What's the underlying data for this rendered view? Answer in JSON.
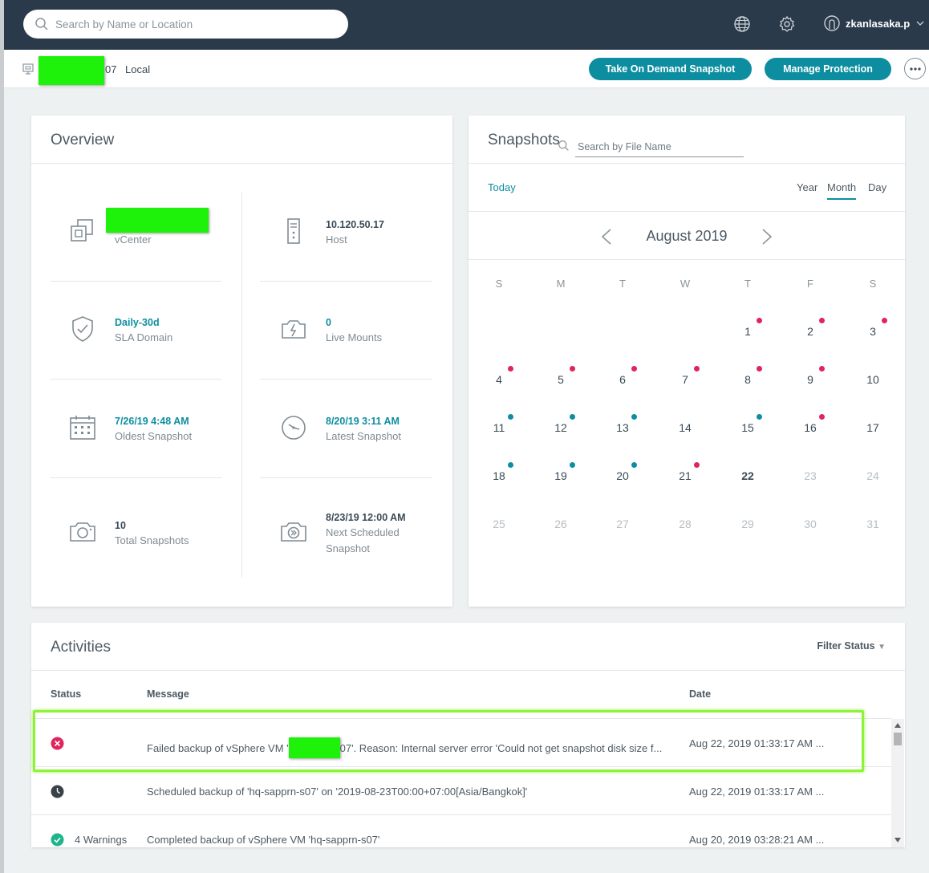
{
  "topbar": {
    "search_placeholder": "Search by Name or Location",
    "username": "zkanlasaka.p"
  },
  "subheader": {
    "vm_name_suffix": "07",
    "location": "Local",
    "take_snapshot_label": "Take On Demand Snapshot",
    "manage_protection_label": "Manage Protection"
  },
  "overview": {
    "title": "Overview",
    "vcenter_label": "vCenter",
    "host_value": "10.120.50.17",
    "host_label": "Host",
    "sla_value": "Daily-30d",
    "sla_label": "SLA Domain",
    "live_mounts_value": "0",
    "live_mounts_label": "Live Mounts",
    "oldest_value": "7/26/19 4:48 AM",
    "oldest_label": "Oldest Snapshot",
    "latest_value": "8/20/19 3:11 AM",
    "latest_label": "Latest Snapshot",
    "total_value": "10",
    "total_label": "Total Snapshots",
    "next_value": "8/23/19 12:00 AM",
    "next_label_1": "Next Scheduled",
    "next_label_2": "Snapshot"
  },
  "snapshots": {
    "title": "Snapshots",
    "search_placeholder": "Search by File Name",
    "today_label": "Today",
    "views": [
      "Year",
      "Month",
      "Day"
    ],
    "active_view": "Month",
    "month_label": "August 2019",
    "weekdays": [
      "S",
      "M",
      "T",
      "W",
      "T",
      "F",
      "S"
    ],
    "weeks": [
      [
        null,
        null,
        null,
        null,
        1,
        2,
        3
      ],
      [
        4,
        5,
        6,
        7,
        8,
        9,
        10
      ],
      [
        11,
        12,
        13,
        14,
        15,
        16,
        17
      ],
      [
        18,
        19,
        20,
        21,
        22,
        23,
        24
      ],
      [
        25,
        26,
        27,
        28,
        29,
        30,
        31
      ]
    ],
    "today_day": 22,
    "red_dot_days": [
      1,
      2,
      3,
      4,
      5,
      6,
      7,
      8,
      9,
      16,
      21
    ],
    "teal_dot_days": [
      11,
      12,
      13,
      15,
      18,
      19,
      20
    ],
    "colors": {
      "red": "#e0245e",
      "teal": "#0d8ea0"
    }
  },
  "activities": {
    "title": "Activities",
    "filter_label": "Filter Status",
    "columns": {
      "status": "Status",
      "message": "Message",
      "date": "Date"
    },
    "rows": [
      {
        "status": "error",
        "warnings": "",
        "message_prefix": "Failed backup of vSphere VM '",
        "message_suffix": "07'. Reason: Internal server error 'Could not get snapshot disk size f...",
        "date": "Aug 22, 2019 01:33:17 AM ..."
      },
      {
        "status": "scheduled",
        "warnings": "",
        "message": "Scheduled backup of 'hq-sapprn-s07' on '2019-08-23T00:00+07:00[Asia/Bangkok]'",
        "date": "Aug 22, 2019 01:33:17 AM ..."
      },
      {
        "status": "success",
        "warnings": "4 Warnings",
        "message": "Completed backup of vSphere VM 'hq-sapprn-s07'",
        "date": "Aug 20, 2019 03:28:21 AM ..."
      }
    ]
  }
}
